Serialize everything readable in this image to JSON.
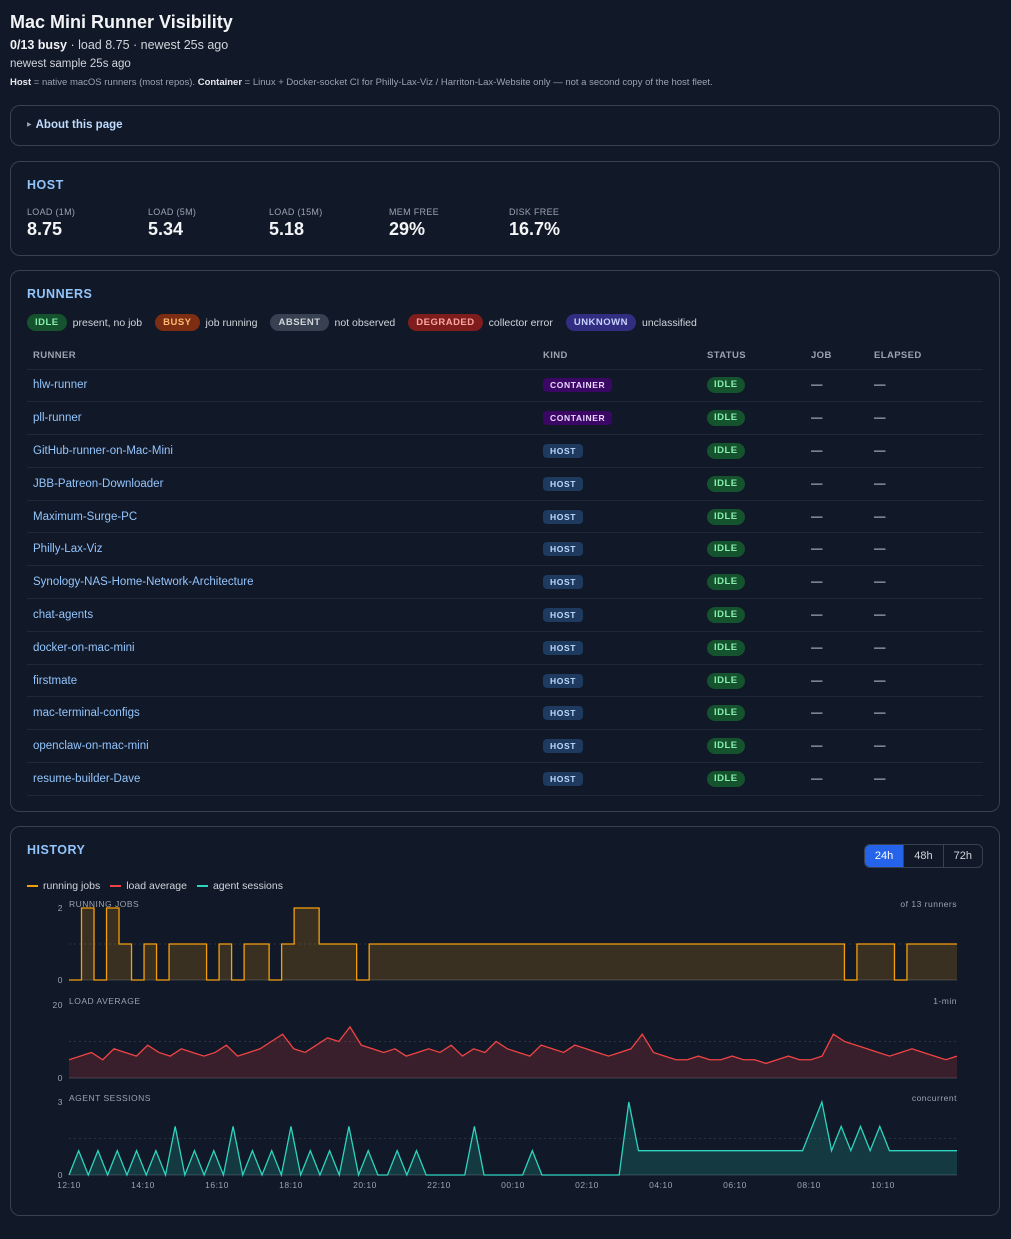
{
  "header": {
    "title": "Mac Mini Runner Visibility",
    "busy": "0/13 busy",
    "load_text": " · load 8.75 · newest 25s ago",
    "newest_sample": "newest sample 25s ago",
    "host_term": "Host",
    "host_desc": " = native macOS runners (most repos). ",
    "container_term": "Container",
    "container_desc": " = Linux + Docker-socket CI for Philly-Lax-Viz / Harriton-Lax-Website only — not a second copy of the host fleet."
  },
  "about": {
    "label": "About this page"
  },
  "host": {
    "title": "HOST",
    "stats": [
      {
        "label": "LOAD (1M)",
        "value": "8.75"
      },
      {
        "label": "LOAD (5M)",
        "value": "5.34"
      },
      {
        "label": "LOAD (15M)",
        "value": "5.18"
      },
      {
        "label": "MEM FREE",
        "value": "29%"
      },
      {
        "label": "DISK FREE",
        "value": "16.7%"
      }
    ]
  },
  "runners": {
    "title": "RUNNERS",
    "legend": [
      {
        "pill": "IDLE",
        "desc": "present, no job",
        "cls": "p-idle"
      },
      {
        "pill": "BUSY",
        "desc": "job running",
        "cls": "p-busy"
      },
      {
        "pill": "ABSENT",
        "desc": "not observed",
        "cls": "p-absent"
      },
      {
        "pill": "DEGRADED",
        "desc": "collector error",
        "cls": "p-degraded"
      },
      {
        "pill": "UNKNOWN",
        "desc": "unclassified",
        "cls": "p-unknown"
      }
    ],
    "columns": [
      "RUNNER",
      "KIND",
      "STATUS",
      "JOB",
      "ELAPSED"
    ],
    "rows": [
      {
        "name": "hlw-runner",
        "kind": "CONTAINER",
        "status": "IDLE",
        "job": "—",
        "elapsed": "—"
      },
      {
        "name": "pll-runner",
        "kind": "CONTAINER",
        "status": "IDLE",
        "job": "—",
        "elapsed": "—"
      },
      {
        "name": "GitHub-runner-on-Mac-Mini",
        "kind": "HOST",
        "status": "IDLE",
        "job": "—",
        "elapsed": "—"
      },
      {
        "name": "JBB-Patreon-Downloader",
        "kind": "HOST",
        "status": "IDLE",
        "job": "—",
        "elapsed": "—"
      },
      {
        "name": "Maximum-Surge-PC",
        "kind": "HOST",
        "status": "IDLE",
        "job": "—",
        "elapsed": "—"
      },
      {
        "name": "Philly-Lax-Viz",
        "kind": "HOST",
        "status": "IDLE",
        "job": "—",
        "elapsed": "—"
      },
      {
        "name": "Synology-NAS-Home-Network-Architecture",
        "kind": "HOST",
        "status": "IDLE",
        "job": "—",
        "elapsed": "—"
      },
      {
        "name": "chat-agents",
        "kind": "HOST",
        "status": "IDLE",
        "job": "—",
        "elapsed": "—"
      },
      {
        "name": "docker-on-mac-mini",
        "kind": "HOST",
        "status": "IDLE",
        "job": "—",
        "elapsed": "—"
      },
      {
        "name": "firstmate",
        "kind": "HOST",
        "status": "IDLE",
        "job": "—",
        "elapsed": "—"
      },
      {
        "name": "mac-terminal-configs",
        "kind": "HOST",
        "status": "IDLE",
        "job": "—",
        "elapsed": "—"
      },
      {
        "name": "openclaw-on-mac-mini",
        "kind": "HOST",
        "status": "IDLE",
        "job": "—",
        "elapsed": "—"
      },
      {
        "name": "resume-builder-Dave",
        "kind": "HOST",
        "status": "IDLE",
        "job": "—",
        "elapsed": "—"
      }
    ]
  },
  "history": {
    "title": "HISTORY",
    "ranges": [
      "24h",
      "48h",
      "72h"
    ],
    "active_range": "24h",
    "legend": [
      {
        "label": "running jobs",
        "color": "#f59e0b"
      },
      {
        "label": "load average",
        "color": "#ef4444"
      },
      {
        "label": "agent sessions",
        "color": "#2dd4bf"
      }
    ]
  },
  "chart_data": [
    {
      "type": "area",
      "title": "RUNNING JOBS",
      "note": "of 13 runners",
      "ylim": [
        0,
        2
      ],
      "yticks": [
        "2",
        "0"
      ],
      "color": "#f59e0b",
      "x": [
        "12:10",
        "12:30",
        "12:50",
        "13:10",
        "13:30",
        "13:50",
        "14:10",
        "14:30",
        "14:50",
        "15:10",
        "15:30",
        "15:50",
        "16:10",
        "16:30",
        "16:50",
        "17:10",
        "17:30",
        "17:50",
        "18:10",
        "18:30",
        "18:50",
        "19:10",
        "19:30",
        "19:50",
        "20:10",
        "20:30",
        "20:50",
        "21:10",
        "21:30",
        "21:50",
        "22:10",
        "22:30",
        "22:50",
        "23:10",
        "23:30",
        "23:50",
        "00:10",
        "00:30",
        "00:50",
        "01:10",
        "01:30",
        "01:50",
        "02:10",
        "02:30",
        "02:50",
        "03:10",
        "03:30",
        "03:50",
        "04:10",
        "04:30",
        "04:50",
        "05:10",
        "05:30",
        "05:50",
        "06:10",
        "06:30",
        "06:50",
        "07:10",
        "07:30",
        "07:50",
        "08:10",
        "08:30",
        "08:50",
        "09:10",
        "09:30",
        "09:50",
        "10:10",
        "10:30",
        "10:50",
        "11:10",
        "11:30",
        "11:50"
      ],
      "values": [
        0,
        2,
        0,
        2,
        1,
        0,
        1,
        0,
        1,
        1,
        1,
        0,
        1,
        0,
        1,
        1,
        0,
        1,
        2,
        2,
        1,
        1,
        1,
        0,
        1,
        1,
        1,
        1,
        1,
        1,
        1,
        1,
        1,
        1,
        1,
        1,
        1,
        1,
        1,
        1,
        1,
        1,
        1,
        1,
        1,
        1,
        1,
        1,
        1,
        1,
        1,
        1,
        1,
        1,
        1,
        1,
        1,
        1,
        1,
        1,
        1,
        1,
        0,
        1,
        1,
        1,
        0,
        1,
        1,
        1,
        1,
        1
      ]
    },
    {
      "type": "line",
      "title": "LOAD AVERAGE",
      "note": "1-min",
      "ylim": [
        0,
        20
      ],
      "yticks": [
        "20",
        "0"
      ],
      "color": "#ef4444",
      "values": [
        5,
        6,
        7,
        5,
        8,
        7,
        6,
        9,
        7,
        6,
        8,
        7,
        6,
        7,
        9,
        6,
        7,
        8,
        10,
        12,
        8,
        7,
        9,
        11,
        10,
        14,
        9,
        8,
        7,
        8,
        6,
        7,
        8,
        7,
        9,
        6,
        8,
        7,
        10,
        8,
        7,
        6,
        9,
        8,
        7,
        9,
        8,
        7,
        6,
        7,
        8,
        12,
        7,
        6,
        5,
        5,
        6,
        5,
        5,
        6,
        5,
        5,
        4,
        5,
        6,
        5,
        5,
        6,
        12,
        10,
        9,
        8,
        7,
        6,
        7,
        8,
        7,
        6,
        5,
        6
      ]
    },
    {
      "type": "line",
      "title": "AGENT SESSIONS",
      "note": "concurrent",
      "ylim": [
        0,
        3
      ],
      "yticks": [
        "3",
        "0"
      ],
      "color": "#2dd4bf",
      "xticks": [
        "12:10",
        "14:10",
        "16:10",
        "18:10",
        "20:10",
        "22:10",
        "00:10",
        "02:10",
        "04:10",
        "06:10",
        "08:10",
        "10:10"
      ],
      "values": [
        0,
        1,
        0,
        1,
        0,
        1,
        0,
        1,
        0,
        1,
        0,
        2,
        0,
        1,
        0,
        1,
        0,
        2,
        0,
        1,
        0,
        1,
        0,
        2,
        0,
        1,
        0,
        1,
        0,
        2,
        0,
        1,
        0,
        0,
        1,
        0,
        1,
        0,
        0,
        0,
        0,
        0,
        2,
        0,
        0,
        0,
        0,
        0,
        1,
        0,
        0,
        0,
        0,
        0,
        0,
        0,
        0,
        0,
        3,
        1,
        1,
        1,
        1,
        1,
        1,
        1,
        1,
        1,
        1,
        1,
        1,
        1,
        1,
        1,
        1,
        1,
        1,
        2,
        3,
        1,
        2,
        1,
        2,
        1,
        2,
        1,
        1,
        1,
        1,
        1,
        1,
        1,
        1
      ]
    }
  ]
}
